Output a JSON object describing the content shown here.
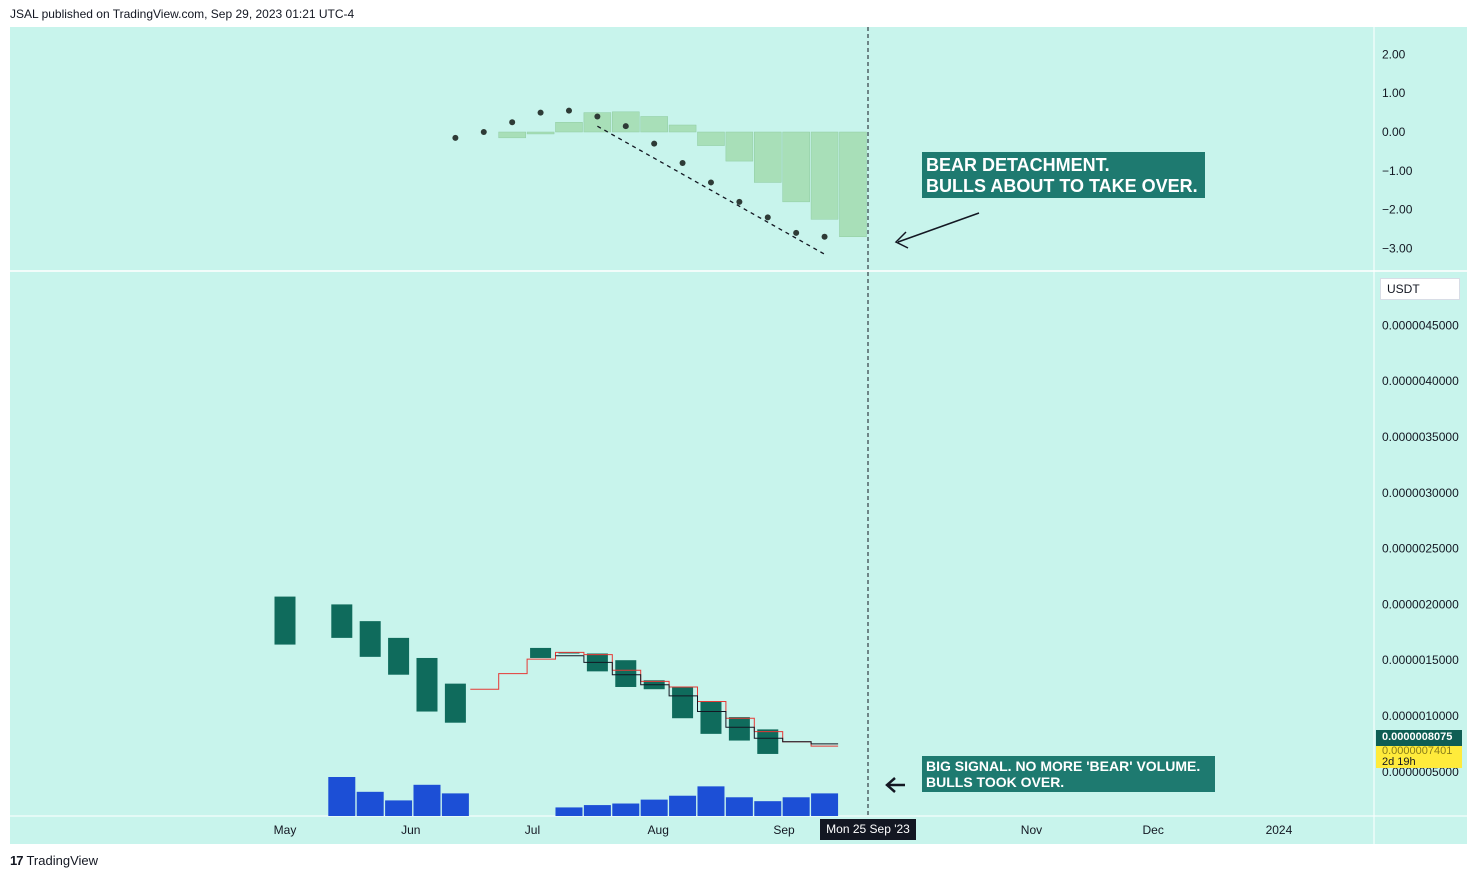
{
  "header": {
    "text": "JSAL published on TradingView.com, Sep 29, 2023 01:21 UTC-4"
  },
  "footer": {
    "logo": "17",
    "brand": "TradingView"
  },
  "colors": {
    "background": "#c8f4ec",
    "candle": "#0f6b5c",
    "histogram": "#a8dfb8",
    "volume": "#1c4fd6",
    "annotation_bg": "#1e7a70",
    "red_line": "#e53935",
    "black_line": "#131722"
  },
  "price_scale": {
    "label": "USDT"
  },
  "current_price": {
    "value": "0.0000008075",
    "countdown": "2d 19h",
    "obscured": "0.0000007401"
  },
  "crosshair": {
    "date_label": "Mon 25 Sep '23"
  },
  "annotations": [
    {
      "lines": "BEAR DETACHMENT.\nBULLS ABOUT TO TAKE OVER."
    },
    {
      "lines": "BIG SIGNAL. NO MORE 'BEAR' VOLUME.\nBULLS TOOK OVER."
    }
  ],
  "chart_data": [
    {
      "type": "bar",
      "panel": "oscillator",
      "ylim": [
        -3.5,
        2.5
      ],
      "y_ticks": [
        "2.00",
        "1.00",
        "0.00",
        "−1.00",
        "−2.00",
        "−3.00"
      ],
      "y_tick_values": [
        2,
        1,
        0,
        -1,
        -2,
        -3
      ],
      "histogram": [
        {
          "x": "2023-06-26",
          "value": -0.15
        },
        {
          "x": "2023-07-03",
          "value": -0.05
        },
        {
          "x": "2023-07-10",
          "value": 0.25
        },
        {
          "x": "2023-07-17",
          "value": 0.5
        },
        {
          "x": "2023-07-24",
          "value": 0.52
        },
        {
          "x": "2023-07-31",
          "value": 0.4
        },
        {
          "x": "2023-08-07",
          "value": 0.18
        },
        {
          "x": "2023-08-14",
          "value": -0.35
        },
        {
          "x": "2023-08-21",
          "value": -0.75
        },
        {
          "x": "2023-08-28",
          "value": -1.3
        },
        {
          "x": "2023-09-04",
          "value": -1.8
        },
        {
          "x": "2023-09-11",
          "value": -2.25
        },
        {
          "x": "2023-09-18",
          "value": -2.7
        }
      ],
      "dots": [
        {
          "x": "2023-06-12",
          "value": -0.15
        },
        {
          "x": "2023-06-19",
          "value": 0.0
        },
        {
          "x": "2023-06-26",
          "value": 0.25
        },
        {
          "x": "2023-07-03",
          "value": 0.5
        },
        {
          "x": "2023-07-10",
          "value": 0.55
        },
        {
          "x": "2023-07-17",
          "value": 0.4
        },
        {
          "x": "2023-07-24",
          "value": 0.15
        },
        {
          "x": "2023-07-31",
          "value": -0.3
        },
        {
          "x": "2023-08-07",
          "value": -0.8
        },
        {
          "x": "2023-08-14",
          "value": -1.3
        },
        {
          "x": "2023-08-21",
          "value": -1.8
        },
        {
          "x": "2023-08-28",
          "value": -2.2
        },
        {
          "x": "2023-09-04",
          "value": -2.6
        },
        {
          "x": "2023-09-11",
          "value": -2.7
        }
      ],
      "trendline": {
        "from": {
          "x": "2023-07-17",
          "value": 0.15
        },
        "to": {
          "x": "2023-09-11",
          "value": -3.15
        }
      }
    },
    {
      "type": "candlestick",
      "panel": "price",
      "ylim": [
        4e-07,
        4.9e-06
      ],
      "y_ticks": [
        "0.0000045000",
        "0.0000040000",
        "0.0000035000",
        "0.0000030000",
        "0.0000025000",
        "0.0000020000",
        "0.0000015000",
        "0.0000010000",
        "0.0000005000"
      ],
      "y_tick_values": [
        4.5e-06,
        4e-06,
        3.5e-06,
        3e-06,
        2.5e-06,
        2e-06,
        1.5e-06,
        1e-06,
        5e-07
      ],
      "x_ticks": [
        "May",
        "Jun",
        "Jul",
        "Aug",
        "Sep",
        "Nov",
        "Dec",
        "2024"
      ],
      "x_tick_dates": [
        "2023-05-01",
        "2023-06-01",
        "2023-07-01",
        "2023-08-01",
        "2023-09-01",
        "2023-11-01",
        "2023-12-01",
        "2024-01-01"
      ],
      "candles": [
        {
          "x": "2023-05-01",
          "open": 2.07e-06,
          "close": 1.64e-06
        },
        {
          "x": "2023-05-15",
          "open": 2e-06,
          "close": 1.7e-06
        },
        {
          "x": "2023-05-22",
          "open": 1.85e-06,
          "close": 1.53e-06
        },
        {
          "x": "2023-05-29",
          "open": 1.7e-06,
          "close": 1.37e-06
        },
        {
          "x": "2023-06-05",
          "open": 1.52e-06,
          "close": 1.04e-06
        },
        {
          "x": "2023-06-12",
          "open": 1.29e-06,
          "close": 9.4e-07
        },
        {
          "x": "2023-07-03",
          "open": 1.61e-06,
          "close": 1.52e-06
        },
        {
          "x": "2023-07-10",
          "open": 1.57e-06,
          "close": 1.56e-06
        },
        {
          "x": "2023-07-17",
          "open": 1.56e-06,
          "close": 1.4e-06
        },
        {
          "x": "2023-07-24",
          "open": 1.5e-06,
          "close": 1.26e-06
        },
        {
          "x": "2023-07-31",
          "open": 1.32e-06,
          "close": 1.24e-06
        },
        {
          "x": "2023-08-07",
          "open": 1.26e-06,
          "close": 9.8e-07
        },
        {
          "x": "2023-08-14",
          "open": 1.13e-06,
          "close": 8.4e-07
        },
        {
          "x": "2023-08-21",
          "open": 9.9e-07,
          "close": 7.8e-07
        },
        {
          "x": "2023-08-28",
          "open": 8.8e-07,
          "close": 6.6e-07
        }
      ],
      "red_line": [
        {
          "x": "2023-06-19",
          "value": 1.24e-06
        },
        {
          "x": "2023-06-26",
          "value": 1.38e-06
        },
        {
          "x": "2023-07-03",
          "value": 1.51e-06
        },
        {
          "x": "2023-07-10",
          "value": 1.57e-06
        },
        {
          "x": "2023-07-17",
          "value": 1.55e-06
        },
        {
          "x": "2023-07-24",
          "value": 1.41e-06
        },
        {
          "x": "2023-07-31",
          "value": 1.31e-06
        },
        {
          "x": "2023-08-07",
          "value": 1.26e-06
        },
        {
          "x": "2023-08-14",
          "value": 1.13e-06
        },
        {
          "x": "2023-08-21",
          "value": 9.8e-07
        },
        {
          "x": "2023-08-28",
          "value": 8.6e-07
        },
        {
          "x": "2023-09-04",
          "value": 7.7e-07
        },
        {
          "x": "2023-09-11",
          "value": 7.3e-07
        }
      ],
      "black_line": [
        {
          "x": "2023-07-10",
          "value": 1.54e-06
        },
        {
          "x": "2023-07-17",
          "value": 1.48e-06
        },
        {
          "x": "2023-07-24",
          "value": 1.37e-06
        },
        {
          "x": "2023-07-31",
          "value": 1.28e-06
        },
        {
          "x": "2023-08-07",
          "value": 1.18e-06
        },
        {
          "x": "2023-08-14",
          "value": 1.04e-06
        },
        {
          "x": "2023-08-21",
          "value": 9e-07
        },
        {
          "x": "2023-08-28",
          "value": 8e-07
        },
        {
          "x": "2023-09-04",
          "value": 7.7e-07
        },
        {
          "x": "2023-09-11",
          "value": 7.5e-07
        }
      ],
      "volume": [
        {
          "x": "2023-05-15",
          "value": 100
        },
        {
          "x": "2023-05-22",
          "value": 62
        },
        {
          "x": "2023-05-29",
          "value": 40
        },
        {
          "x": "2023-06-05",
          "value": 80
        },
        {
          "x": "2023-06-12",
          "value": 58
        },
        {
          "x": "2023-07-10",
          "value": 22
        },
        {
          "x": "2023-07-17",
          "value": 28
        },
        {
          "x": "2023-07-24",
          "value": 32
        },
        {
          "x": "2023-07-31",
          "value": 42
        },
        {
          "x": "2023-08-07",
          "value": 52
        },
        {
          "x": "2023-08-14",
          "value": 76
        },
        {
          "x": "2023-08-21",
          "value": 48
        },
        {
          "x": "2023-08-28",
          "value": 38
        },
        {
          "x": "2023-09-04",
          "value": 48
        },
        {
          "x": "2023-09-11",
          "value": 58
        }
      ]
    }
  ]
}
